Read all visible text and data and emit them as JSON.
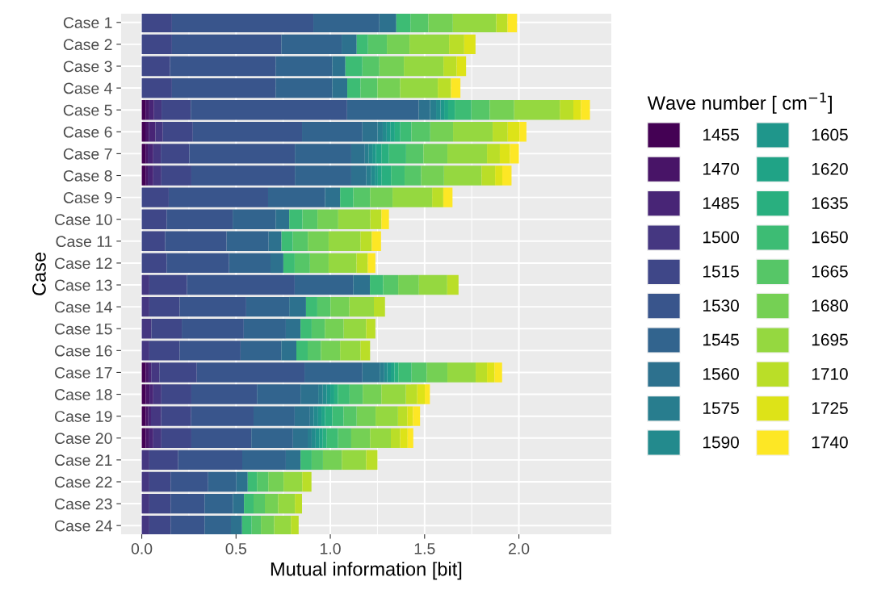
{
  "chart_data": {
    "type": "bar",
    "orientation": "horizontal",
    "stacked": true,
    "xlabel": "Mutual information [bit]",
    "ylabel": "Case",
    "legend_title": "Wave number [ cm$^{−1}$]",
    "categories": [
      "Case 1",
      "Case 2",
      "Case 3",
      "Case 4",
      "Case 5",
      "Case 6",
      "Case 7",
      "Case 8",
      "Case 9",
      "Case 10",
      "Case 11",
      "Case 12",
      "Case 13",
      "Case 14",
      "Case 15",
      "Case 16",
      "Case 17",
      "Case 18",
      "Case 19",
      "Case 20",
      "Case 21",
      "Case 22",
      "Case 23",
      "Case 24"
    ],
    "xlim": [
      -0.11,
      2.49
    ],
    "xticks": [
      {
        "value": 0,
        "label": "0.0"
      },
      0.5,
      {
        "value": 1,
        "label": "1.0"
      },
      1.5,
      {
        "value": 2,
        "label": "2.0"
      }
    ],
    "grid": true,
    "legend": "right",
    "series": [
      {
        "name": "1455",
        "color": "#440154",
        "values": [
          null,
          null,
          null,
          null,
          0.02,
          0.019,
          0.02,
          0.02,
          null,
          null,
          null,
          null,
          null,
          null,
          null,
          null,
          0.021,
          0.021,
          0.021,
          0.021,
          null,
          null,
          null,
          null
        ]
      },
      {
        "name": "1470",
        "color": "#481467",
        "values": [
          null,
          null,
          null,
          null,
          0.02,
          0.018,
          0.012,
          0.012,
          null,
          null,
          null,
          null,
          null,
          null,
          null,
          null,
          0.015,
          0.02,
          0.014,
          0.019,
          null,
          null,
          null,
          null
        ]
      },
      {
        "name": "1485",
        "color": "#482576",
        "values": [
          null,
          null,
          null,
          null,
          0.025,
          0.035,
          0.029,
          0.029,
          null,
          null,
          null,
          null,
          null,
          null,
          null,
          null,
          0.014,
          0.02,
          0.014,
          0.021,
          null,
          null,
          null,
          null
        ]
      },
      {
        "name": "1500",
        "color": "#453781",
        "values": [
          null,
          null,
          null,
          null,
          0.04,
          0.04,
          0.04,
          0.043,
          null,
          null,
          null,
          null,
          0.04,
          0.04,
          0.051,
          0.04,
          0.043,
          0.043,
          0.054,
          0.043,
          0.04,
          0.04,
          0.04,
          0.04
        ]
      },
      {
        "name": "1515",
        "color": "#3f4788",
        "values": [
          0.16,
          0.16,
          0.15,
          0.16,
          0.155,
          0.159,
          0.151,
          0.159,
          0.143,
          0.132,
          0.124,
          0.132,
          0.2,
          0.161,
          0.161,
          0.161,
          0.199,
          0.159,
          0.159,
          0.159,
          0.153,
          0.113,
          0.113,
          0.113
        ]
      },
      {
        "name": "1530",
        "color": "#39558c",
        "values": [
          0.75,
          0.58,
          0.56,
          0.55,
          0.829,
          0.579,
          0.56,
          0.549,
          0.527,
          0.35,
          0.326,
          0.331,
          0.571,
          0.353,
          0.329,
          0.323,
          0.571,
          0.348,
          0.331,
          0.318,
          0.34,
          0.199,
          0.18,
          0.18
        ]
      },
      {
        "name": "1545",
        "color": "#32648e",
        "values": [
          0.35,
          0.32,
          0.3,
          0.3,
          0.38,
          0.32,
          0.299,
          0.299,
          0.302,
          0.228,
          0.223,
          0.22,
          0.31,
          0.228,
          0.223,
          0.216,
          0.307,
          0.231,
          0.218,
          0.221,
          0.231,
          0.15,
          0.15,
          0.14
        ]
      },
      {
        "name": "1560",
        "color": "#2d718e",
        "values": [
          0.09,
          0.08,
          0.07,
          0.08,
          0.06,
          0.081,
          0.072,
          0.08,
          0.08,
          0.072,
          0.068,
          0.068,
          0.089,
          0.089,
          0.078,
          0.08,
          0.092,
          0.094,
          0.081,
          0.078,
          0.078,
          0.06,
          0.059,
          0.059
        ]
      },
      {
        "name": "1575",
        "color": "#287d8e",
        "values": [
          null,
          null,
          null,
          null,
          0.032,
          0.027,
          0.021,
          0.024,
          null,
          null,
          null,
          null,
          null,
          null,
          null,
          null,
          0.024,
          0.024,
          0.019,
          0.021,
          null,
          null,
          null,
          null
        ]
      },
      {
        "name": "1590",
        "color": "#238a8d",
        "values": [
          null,
          null,
          null,
          null,
          0.024,
          0.021,
          0.019,
          0.021,
          null,
          null,
          null,
          null,
          null,
          null,
          null,
          null,
          0.016,
          0.021,
          0.024,
          0.021,
          null,
          null,
          null,
          null
        ]
      },
      {
        "name": "1605",
        "color": "#1f968b",
        "values": [
          null,
          null,
          null,
          null,
          0.019,
          0.019,
          0.019,
          0.016,
          null,
          null,
          null,
          null,
          null,
          null,
          null,
          null,
          0.019,
          0.019,
          0.018,
          0.019,
          null,
          null,
          null,
          null
        ]
      },
      {
        "name": "1620",
        "color": "#20a386",
        "values": [
          null,
          null,
          null,
          null,
          0.021,
          0.024,
          0.029,
          0.019,
          null,
          null,
          null,
          null,
          null,
          null,
          null,
          null,
          0.019,
          0.021,
          0.019,
          0.019,
          null,
          null,
          null,
          null
        ]
      },
      {
        "name": "1635",
        "color": "#29af7f",
        "values": [
          null,
          null,
          null,
          null,
          0.035,
          0.029,
          0.04,
          0.051,
          null,
          null,
          null,
          null,
          null,
          null,
          null,
          null,
          0.021,
          0.019,
          0.038,
          0.021,
          null,
          null,
          null,
          null
        ]
      },
      {
        "name": "1650",
        "color": "#3dbc74",
        "values": [
          0.075,
          0.06,
          0.09,
          0.07,
          0.088,
          0.059,
          0.091,
          0.072,
          0.07,
          0.07,
          0.06,
          0.06,
          0.07,
          0.06,
          0.059,
          0.06,
          0.07,
          0.062,
          0.06,
          0.06,
          0.059,
          0.049,
          0.051,
          0.051
        ]
      },
      {
        "name": "1665",
        "color": "#56c667",
        "values": [
          0.095,
          0.1,
          0.09,
          0.09,
          0.097,
          0.1,
          0.092,
          0.088,
          0.089,
          0.08,
          0.08,
          0.081,
          0.08,
          0.07,
          0.07,
          0.07,
          0.08,
          0.07,
          0.07,
          0.07,
          0.06,
          0.06,
          0.06,
          0.049
        ]
      },
      {
        "name": "1680",
        "color": "#75d054",
        "values": [
          0.13,
          0.12,
          0.13,
          0.12,
          0.13,
          0.121,
          0.127,
          0.121,
          0.119,
          0.11,
          0.11,
          0.099,
          0.11,
          0.1,
          0.1,
          0.102,
          0.11,
          0.099,
          0.1,
          0.1,
          0.1,
          0.081,
          0.07,
          0.07
        ]
      },
      {
        "name": "1695",
        "color": "#95d840",
        "values": [
          0.23,
          0.21,
          0.21,
          0.2,
          0.242,
          0.21,
          0.21,
          0.199,
          0.21,
          0.17,
          0.169,
          0.148,
          0.15,
          0.13,
          0.119,
          0.108,
          0.15,
          0.13,
          0.119,
          0.11,
          0.129,
          0.099,
          0.089,
          0.089
        ]
      },
      {
        "name": "1710",
        "color": "#bade28",
        "values": [
          0.06,
          0.08,
          0.07,
          0.07,
          0.072,
          0.08,
          0.068,
          0.072,
          0.059,
          0.059,
          0.06,
          0.06,
          0.06,
          0.059,
          0.049,
          0.051,
          0.06,
          0.06,
          0.049,
          0.049,
          0.06,
          0.049,
          0.038,
          0.041
        ]
      },
      {
        "name": "1725",
        "color": "#dde318",
        "values": [
          null,
          0.06,
          0.05,
          null,
          0.04,
          0.062,
          0.053,
          0.038,
          null,
          null,
          null,
          null,
          null,
          null,
          null,
          null,
          0.04,
          0.04,
          0.03,
          0.04,
          null,
          null,
          null,
          null
        ]
      },
      {
        "name": "1740",
        "color": "#fde725",
        "values": [
          0.05,
          null,
          null,
          0.05,
          0.048,
          0.037,
          0.048,
          0.049,
          0.049,
          0.04,
          0.049,
          0.04,
          null,
          null,
          null,
          null,
          0.04,
          0.027,
          0.038,
          0.03,
          null,
          null,
          null,
          null
        ]
      }
    ]
  }
}
